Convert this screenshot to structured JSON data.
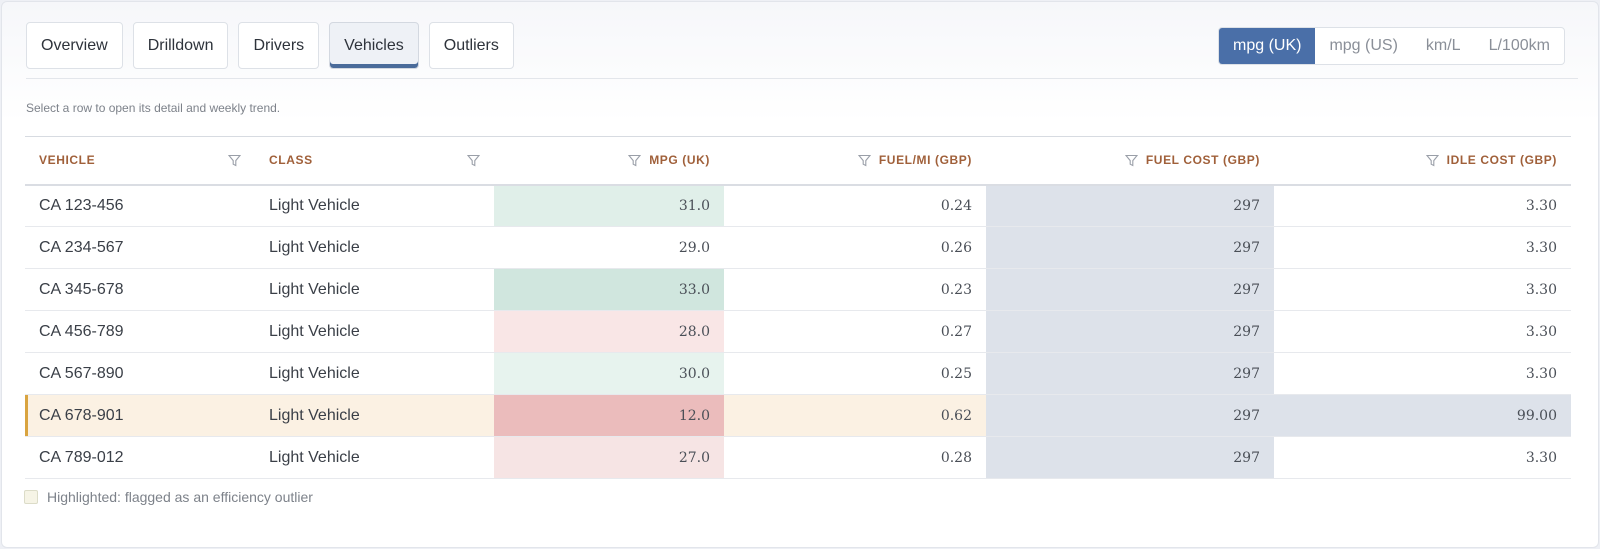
{
  "tabs": [
    {
      "label": "Overview",
      "active": false
    },
    {
      "label": "Drilldown",
      "active": false
    },
    {
      "label": "Drivers",
      "active": false
    },
    {
      "label": "Vehicles",
      "active": true
    },
    {
      "label": "Outliers",
      "active": false
    }
  ],
  "units": [
    {
      "label": "mpg (UK)",
      "active": true
    },
    {
      "label": "mpg (US)",
      "active": false
    },
    {
      "label": "km/L",
      "active": false
    },
    {
      "label": "L/100km",
      "active": false
    }
  ],
  "hint": "Select a row to open its detail and weekly trend.",
  "table": {
    "columns": [
      {
        "label": "Vehicle"
      },
      {
        "label": "Class"
      },
      {
        "label": "mpg (UK)"
      },
      {
        "label": "Fuel/mi (GBP)"
      },
      {
        "label": "Fuel cost (GBP)"
      },
      {
        "label": "Idle cost (GBP)"
      }
    ],
    "rows": [
      {
        "vehicle": "CA 123-456",
        "class": "Light Vehicle",
        "mpg": "31.0",
        "fuel_mi": "0.24",
        "fuel_cost": "297",
        "idle_cost": "3.30",
        "flagged": false,
        "mpg_color": "#e0efe9",
        "idle_color": ""
      },
      {
        "vehicle": "CA 234-567",
        "class": "Light Vehicle",
        "mpg": "29.0",
        "fuel_mi": "0.26",
        "fuel_cost": "297",
        "idle_cost": "3.30",
        "flagged": false,
        "mpg_color": "",
        "idle_color": ""
      },
      {
        "vehicle": "CA 345-678",
        "class": "Light Vehicle",
        "mpg": "33.0",
        "fuel_mi": "0.23",
        "fuel_cost": "297",
        "idle_cost": "3.30",
        "flagged": false,
        "mpg_color": "#d0e6de",
        "idle_color": ""
      },
      {
        "vehicle": "CA 456-789",
        "class": "Light Vehicle",
        "mpg": "28.0",
        "fuel_mi": "0.27",
        "fuel_cost": "297",
        "idle_cost": "3.30",
        "flagged": false,
        "mpg_color": "#f9e6e6",
        "idle_color": ""
      },
      {
        "vehicle": "CA 567-890",
        "class": "Light Vehicle",
        "mpg": "30.0",
        "fuel_mi": "0.25",
        "fuel_cost": "297",
        "idle_cost": "3.30",
        "flagged": false,
        "mpg_color": "#e7f3ee",
        "idle_color": ""
      },
      {
        "vehicle": "CA 678-901",
        "class": "Light Vehicle",
        "mpg": "12.0",
        "fuel_mi": "0.62",
        "fuel_cost": "297",
        "idle_cost": "99.00",
        "flagged": true,
        "mpg_color": "#ebbcbc",
        "idle_color": "#dde2ea"
      },
      {
        "vehicle": "CA 789-012",
        "class": "Light Vehicle",
        "mpg": "27.0",
        "fuel_mi": "0.28",
        "fuel_cost": "297",
        "idle_cost": "3.30",
        "flagged": false,
        "mpg_color": "#f6e4e4",
        "idle_color": ""
      }
    ]
  },
  "legend": "Highlighted: flagged as an efficiency outlier",
  "colors": {
    "accent": "#4a6fa8",
    "header_text": "#a0603a",
    "flag_row": "#fbf1e3",
    "flag_marker": "#d9a440",
    "cost_column": "#dde2ea"
  }
}
